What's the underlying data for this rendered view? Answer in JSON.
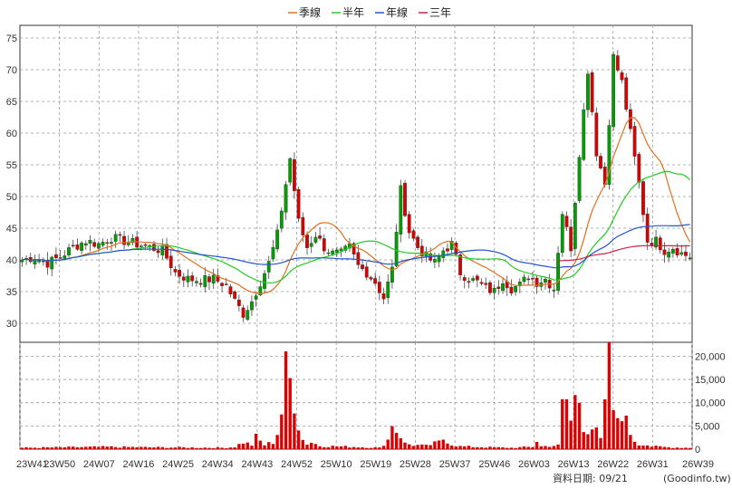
{
  "chart_data": {
    "type": "candlestick",
    "title": "",
    "legend": {
      "position": "top-center",
      "items": [
        {
          "name": "季線",
          "color": "#e07020"
        },
        {
          "name": "半年",
          "color": "#22cc22"
        },
        {
          "name": "年線",
          "color": "#2255cc"
        },
        {
          "name": "三年",
          "color": "#cc2244"
        }
      ]
    },
    "colors": {
      "up": "#00a000",
      "down": "#dd0000",
      "grid": "#999999",
      "volume": "#dd0000"
    },
    "x_ticks": [
      "23W41",
      "23W50",
      "24W07",
      "24W16",
      "24W25",
      "24W34",
      "24W43",
      "24W52",
      "25W10",
      "25W19",
      "25W28",
      "25W37",
      "25W46",
      "26W03",
      "26W13",
      "26W22",
      "26W31",
      "26W39"
    ],
    "price_axis": {
      "min": 27,
      "max": 77,
      "ticks": [
        30,
        35,
        40,
        45,
        50,
        55,
        60,
        65,
        70,
        75
      ]
    },
    "volume_axis": {
      "min": 0,
      "max": 23000,
      "ticks": [
        {
          "value": 0,
          "label": "0"
        },
        {
          "value": 5000,
          "label": "5,000"
        },
        {
          "value": 10000,
          "label": "10,000"
        },
        {
          "value": 15000,
          "label": "15,000"
        },
        {
          "value": 20000,
          "label": "20,000"
        }
      ]
    },
    "weeks": 158,
    "price_anchors": [
      [
        0,
        40
      ],
      [
        3,
        40.5
      ],
      [
        6,
        39.5
      ],
      [
        9,
        40.5
      ],
      [
        12,
        42
      ],
      [
        15,
        43
      ],
      [
        18,
        42.5
      ],
      [
        21,
        43.5
      ],
      [
        24,
        43
      ],
      [
        27,
        42.5
      ],
      [
        30,
        42
      ],
      [
        33,
        41.5
      ],
      [
        36,
        38
      ],
      [
        39,
        37
      ],
      [
        42,
        36.8
      ],
      [
        45,
        37
      ],
      [
        48,
        36
      ],
      [
        50,
        33.5
      ],
      [
        52,
        31.5
      ],
      [
        54,
        33.5
      ],
      [
        56,
        36.5
      ],
      [
        58,
        39.5
      ],
      [
        60,
        44
      ],
      [
        62,
        52
      ],
      [
        63,
        56
      ],
      [
        65,
        46
      ],
      [
        67,
        42
      ],
      [
        69,
        44
      ],
      [
        71,
        42
      ],
      [
        73,
        41
      ],
      [
        75,
        41
      ],
      [
        77,
        42
      ],
      [
        79,
        39
      ],
      [
        81,
        38
      ],
      [
        83,
        36.5
      ],
      [
        85,
        34
      ],
      [
        87,
        38.5
      ],
      [
        89,
        51
      ],
      [
        91,
        44.5
      ],
      [
        93,
        42
      ],
      [
        95,
        40.5
      ],
      [
        97,
        39.5
      ],
      [
        99,
        41.5
      ],
      [
        101,
        42.5
      ],
      [
        103,
        38
      ],
      [
        105,
        37
      ],
      [
        107,
        36.5
      ],
      [
        109,
        35.5
      ],
      [
        111,
        35
      ],
      [
        113,
        37
      ],
      [
        115,
        35.5
      ],
      [
        117,
        36
      ],
      [
        119,
        37.5
      ],
      [
        121,
        36.5
      ],
      [
        123,
        37
      ],
      [
        125,
        35.5
      ],
      [
        127,
        47.5
      ],
      [
        129,
        42
      ],
      [
        131,
        57
      ],
      [
        133,
        70
      ],
      [
        135,
        57
      ],
      [
        137,
        52
      ],
      [
        139,
        72
      ],
      [
        141,
        68
      ],
      [
        143,
        60
      ],
      [
        145,
        52
      ],
      [
        147,
        43
      ],
      [
        149,
        43
      ],
      [
        151,
        41.5
      ],
      [
        153,
        42
      ],
      [
        155,
        41
      ],
      [
        157,
        40.5
      ]
    ],
    "volume_anchors": [
      [
        0,
        300
      ],
      [
        10,
        400
      ],
      [
        20,
        500
      ],
      [
        30,
        400
      ],
      [
        40,
        350
      ],
      [
        48,
        300
      ],
      [
        50,
        500
      ],
      [
        52,
        1500
      ],
      [
        54,
        900
      ],
      [
        55,
        2500
      ],
      [
        57,
        900
      ],
      [
        59,
        1500
      ],
      [
        60,
        3500
      ],
      [
        61,
        8000
      ],
      [
        62,
        16000
      ],
      [
        63,
        14500
      ],
      [
        64,
        11500
      ],
      [
        65,
        5500
      ],
      [
        66,
        2000
      ],
      [
        67,
        1200
      ],
      [
        68,
        1500
      ],
      [
        70,
        700
      ],
      [
        80,
        450
      ],
      [
        84,
        300
      ],
      [
        86,
        2000
      ],
      [
        87,
        6000
      ],
      [
        88,
        4000
      ],
      [
        89,
        3000
      ],
      [
        90,
        1200
      ],
      [
        92,
        900
      ],
      [
        95,
        700
      ],
      [
        98,
        1500
      ],
      [
        99,
        2200
      ],
      [
        100,
        1800
      ],
      [
        101,
        1000
      ],
      [
        103,
        600
      ],
      [
        110,
        400
      ],
      [
        115,
        300
      ],
      [
        120,
        500
      ],
      [
        121,
        1800
      ],
      [
        122,
        600
      ],
      [
        126,
        800
      ],
      [
        127,
        9000
      ],
      [
        128,
        10500
      ],
      [
        129,
        6000
      ],
      [
        130,
        10700
      ],
      [
        131,
        11000
      ],
      [
        132,
        5500
      ],
      [
        133,
        4500
      ],
      [
        134,
        4700
      ],
      [
        135,
        3500
      ],
      [
        136,
        2000
      ],
      [
        137,
        8000
      ],
      [
        138,
        27000
      ],
      [
        139,
        6500
      ],
      [
        140,
        7000
      ],
      [
        141,
        9000
      ],
      [
        142,
        5500
      ],
      [
        143,
        3500
      ],
      [
        144,
        2000
      ],
      [
        145,
        1000
      ],
      [
        146,
        1200
      ],
      [
        148,
        600
      ],
      [
        152,
        400
      ],
      [
        157,
        300
      ]
    ],
    "ma_windows": {
      "季線": 13,
      "半年": 26,
      "年線": 52,
      "三年": 156
    },
    "ma_display_start": {
      "季線": 0,
      "半年": 0,
      "年線": 0,
      "三年": 126
    }
  },
  "footer": {
    "date_label": "資料日期: 09/21",
    "source": "(Goodinfo.tw)"
  }
}
